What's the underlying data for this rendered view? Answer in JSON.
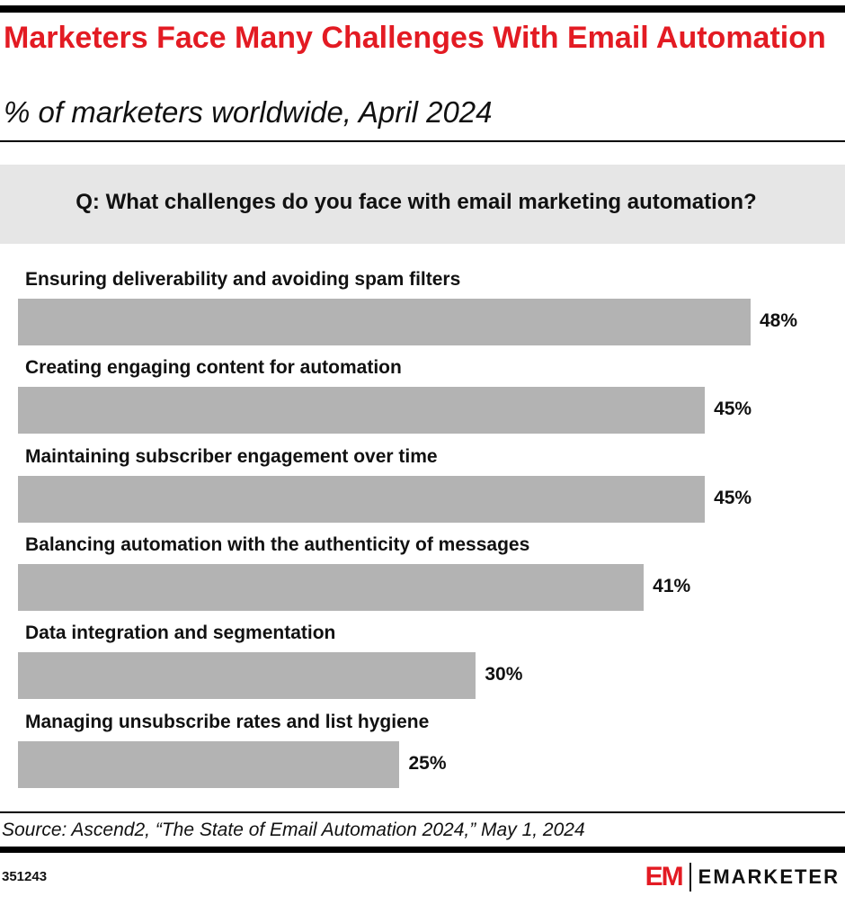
{
  "title": "Marketers Face Many Challenges With Email Automation",
  "subtitle": "% of marketers worldwide, April 2024",
  "question": "Q: What challenges do you face with email marketing automation?",
  "chart_data": {
    "type": "bar",
    "orientation": "horizontal",
    "categories": [
      "Ensuring deliverability and avoiding spam filters",
      "Creating engaging content for automation",
      "Maintaining subscriber engagement over time",
      "Balancing automation with the authenticity of messages",
      "Data integration and segmentation",
      "Managing unsubscribe rates and list hygiene"
    ],
    "values": [
      48,
      45,
      45,
      41,
      30,
      25
    ],
    "data_labels": [
      "48%",
      "45%",
      "45%",
      "41%",
      "30%",
      "25%"
    ],
    "unit": "%",
    "bar_color": "#b3b3b3",
    "grid": false
  },
  "source": "Source: Ascend2, “The State of Email Automation 2024,” May 1, 2024",
  "chart_id": "351243",
  "logo": {
    "mark": "EM",
    "wordmark": "EMARKETER",
    "color": "#e31b23"
  }
}
